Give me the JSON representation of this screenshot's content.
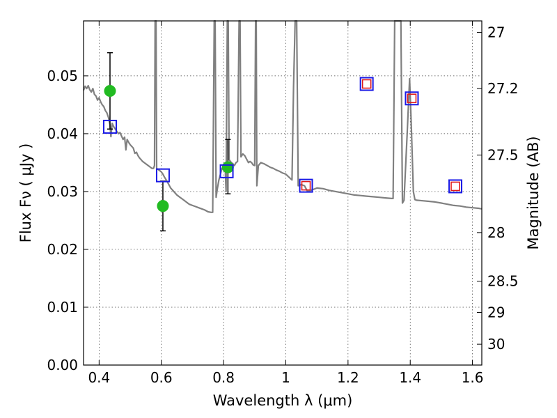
{
  "chart_data": {
    "type": "scatter",
    "xlabel": "Wavelength  λ (μm)",
    "ylabel": "Flux  Fν  ( μJy )",
    "ylabel_right": "Magnitude (AB)",
    "xlim": [
      0.35,
      1.63
    ],
    "ylim": [
      0.0,
      0.0595
    ],
    "xticks": [
      0.4,
      0.6,
      0.8,
      1.0,
      1.2,
      1.4,
      1.6
    ],
    "xtick_labels": [
      "0.4",
      "0.6",
      "0.8",
      "1",
      "1.2",
      "1.4",
      "1.6"
    ],
    "yticks": [
      0.0,
      0.01,
      0.02,
      0.03,
      0.04,
      0.05
    ],
    "ytick_labels": [
      "0.00",
      "0.01",
      "0.02",
      "0.03",
      "0.04",
      "0.05"
    ],
    "right_ticks": [
      {
        "label": "27",
        "flux": 0.0575
      },
      {
        "label": "27.2",
        "flux": 0.0478
      },
      {
        "label": "27.5",
        "flux": 0.0363
      },
      {
        "label": "28",
        "flux": 0.0229
      },
      {
        "label": "28.5",
        "flux": 0.0145
      },
      {
        "label": "29",
        "flux": 0.0091
      },
      {
        "label": "30",
        "flux": 0.0036
      }
    ],
    "grid": true,
    "colors": {
      "model": "#808080",
      "observed": "#22bb22",
      "synthetic_box": "#1a1ae6",
      "upper_limit_box": "#e01a1a",
      "errorbar": "#000000"
    },
    "series": [
      {
        "name": "model SED",
        "kind": "line",
        "points": [
          [
            0.35,
            0.0475
          ],
          [
            0.355,
            0.0482
          ],
          [
            0.36,
            0.0478
          ],
          [
            0.365,
            0.0483
          ],
          [
            0.37,
            0.0476
          ],
          [
            0.375,
            0.0472
          ],
          [
            0.38,
            0.0478
          ],
          [
            0.385,
            0.0468
          ],
          [
            0.39,
            0.0465
          ],
          [
            0.395,
            0.0458
          ],
          [
            0.4,
            0.0462
          ],
          [
            0.405,
            0.0455
          ],
          [
            0.41,
            0.045
          ],
          [
            0.415,
            0.0447
          ],
          [
            0.42,
            0.044
          ],
          [
            0.425,
            0.0436
          ],
          [
            0.43,
            0.0428
          ],
          [
            0.435,
            0.0415
          ],
          [
            0.438,
            0.0395
          ],
          [
            0.442,
            0.0418
          ],
          [
            0.447,
            0.0412
          ],
          [
            0.452,
            0.0408
          ],
          [
            0.457,
            0.0404
          ],
          [
            0.462,
            0.04
          ],
          [
            0.467,
            0.0402
          ],
          [
            0.472,
            0.0396
          ],
          [
            0.477,
            0.039
          ],
          [
            0.482,
            0.0394
          ],
          [
            0.486,
            0.0372
          ],
          [
            0.49,
            0.039
          ],
          [
            0.495,
            0.0385
          ],
          [
            0.5,
            0.0381
          ],
          [
            0.505,
            0.0378
          ],
          [
            0.51,
            0.0375
          ],
          [
            0.515,
            0.0366
          ],
          [
            0.52,
            0.0368
          ],
          [
            0.525,
            0.0362
          ],
          [
            0.53,
            0.0358
          ],
          [
            0.535,
            0.0355
          ],
          [
            0.54,
            0.0352
          ],
          [
            0.545,
            0.035
          ],
          [
            0.55,
            0.0348
          ],
          [
            0.555,
            0.0346
          ],
          [
            0.56,
            0.0344
          ],
          [
            0.565,
            0.0342
          ],
          [
            0.57,
            0.034
          ],
          [
            0.575,
            0.034
          ],
          [
            0.578,
            0.0345
          ],
          [
            0.58,
            0.06
          ],
          [
            0.583,
            0.06
          ],
          [
            0.585,
            0.034
          ],
          [
            0.59,
            0.0338
          ],
          [
            0.595,
            0.0336
          ],
          [
            0.6,
            0.0334
          ],
          [
            0.605,
            0.033
          ],
          [
            0.61,
            0.0325
          ],
          [
            0.62,
            0.0316
          ],
          [
            0.63,
            0.0306
          ],
          [
            0.64,
            0.03
          ],
          [
            0.65,
            0.0294
          ],
          [
            0.66,
            0.029
          ],
          [
            0.67,
            0.0286
          ],
          [
            0.68,
            0.0282
          ],
          [
            0.69,
            0.0278
          ],
          [
            0.7,
            0.0276
          ],
          [
            0.71,
            0.0274
          ],
          [
            0.72,
            0.0272
          ],
          [
            0.73,
            0.027
          ],
          [
            0.74,
            0.0268
          ],
          [
            0.75,
            0.0265
          ],
          [
            0.76,
            0.0264
          ],
          [
            0.765,
            0.0264
          ],
          [
            0.77,
            0.06
          ],
          [
            0.773,
            0.06
          ],
          [
            0.776,
            0.029
          ],
          [
            0.78,
            0.0305
          ],
          [
            0.785,
            0.032
          ],
          [
            0.79,
            0.033
          ],
          [
            0.795,
            0.034
          ],
          [
            0.8,
            0.0342
          ],
          [
            0.805,
            0.0345
          ],
          [
            0.808,
            0.03
          ],
          [
            0.812,
            0.06
          ],
          [
            0.815,
            0.06
          ],
          [
            0.818,
            0.0355
          ],
          [
            0.825,
            0.035
          ],
          [
            0.83,
            0.0348
          ],
          [
            0.835,
            0.0345
          ],
          [
            0.84,
            0.035
          ],
          [
            0.845,
            0.0352
          ],
          [
            0.85,
            0.06
          ],
          [
            0.853,
            0.06
          ],
          [
            0.856,
            0.036
          ],
          [
            0.862,
            0.0365
          ],
          [
            0.868,
            0.0362
          ],
          [
            0.875,
            0.0355
          ],
          [
            0.88,
            0.035
          ],
          [
            0.885,
            0.0352
          ],
          [
            0.89,
            0.035
          ],
          [
            0.895,
            0.0346
          ],
          [
            0.9,
            0.0345
          ],
          [
            0.903,
            0.06
          ],
          [
            0.905,
            0.06
          ],
          [
            0.907,
            0.031
          ],
          [
            0.912,
            0.0345
          ],
          [
            0.92,
            0.035
          ],
          [
            0.93,
            0.0348
          ],
          [
            0.94,
            0.0345
          ],
          [
            0.95,
            0.0342
          ],
          [
            0.96,
            0.034
          ],
          [
            0.97,
            0.0337
          ],
          [
            0.98,
            0.0335
          ],
          [
            0.99,
            0.0332
          ],
          [
            1.0,
            0.033
          ],
          [
            1.01,
            0.0325
          ],
          [
            1.02,
            0.032
          ],
          [
            1.025,
            0.048
          ],
          [
            1.03,
            0.06
          ],
          [
            1.035,
            0.06
          ],
          [
            1.04,
            0.031
          ],
          [
            1.05,
            0.0312
          ],
          [
            1.06,
            0.031
          ],
          [
            1.07,
            0.03
          ],
          [
            1.08,
            0.0302
          ],
          [
            1.09,
            0.0304
          ],
          [
            1.1,
            0.0306
          ],
          [
            1.12,
            0.0305
          ],
          [
            1.14,
            0.0302
          ],
          [
            1.16,
            0.03
          ],
          [
            1.18,
            0.0298
          ],
          [
            1.2,
            0.0296
          ],
          [
            1.22,
            0.0294
          ],
          [
            1.24,
            0.0293
          ],
          [
            1.26,
            0.0292
          ],
          [
            1.28,
            0.0291
          ],
          [
            1.3,
            0.029
          ],
          [
            1.32,
            0.0289
          ],
          [
            1.34,
            0.0288
          ],
          [
            1.345,
            0.0288
          ],
          [
            1.35,
            0.06
          ],
          [
            1.355,
            0.06
          ],
          [
            1.36,
            0.06
          ],
          [
            1.37,
            0.06
          ],
          [
            1.375,
            0.028
          ],
          [
            1.38,
            0.0285
          ],
          [
            1.39,
            0.04
          ],
          [
            1.398,
            0.0495
          ],
          [
            1.403,
            0.042
          ],
          [
            1.41,
            0.03
          ],
          [
            1.415,
            0.0286
          ],
          [
            1.42,
            0.0285
          ],
          [
            1.44,
            0.0284
          ],
          [
            1.46,
            0.0283
          ],
          [
            1.48,
            0.0282
          ],
          [
            1.5,
            0.028
          ],
          [
            1.52,
            0.0278
          ],
          [
            1.54,
            0.0276
          ],
          [
            1.56,
            0.0275
          ],
          [
            1.58,
            0.0273
          ],
          [
            1.6,
            0.0272
          ],
          [
            1.62,
            0.0271
          ],
          [
            1.63,
            0.027
          ]
        ]
      },
      {
        "name": "observed photometry",
        "kind": "points_with_errorbars",
        "points": [
          {
            "x": 0.435,
            "y": 0.0474,
            "yerr": [
              0.0408,
              0.054
            ]
          },
          {
            "x": 0.605,
            "y": 0.0275,
            "yerr": [
              0.0232,
              0.0318
            ]
          },
          {
            "x": 0.814,
            "y": 0.0342,
            "yerr": [
              0.0296,
              0.039
            ]
          }
        ]
      },
      {
        "name": "synthetic photometry",
        "kind": "open_squares",
        "points": [
          {
            "x": 0.435,
            "y": 0.0412
          },
          {
            "x": 0.605,
            "y": 0.0328
          },
          {
            "x": 0.81,
            "y": 0.0335
          },
          {
            "x": 1.065,
            "y": 0.031
          },
          {
            "x": 1.26,
            "y": 0.0486
          },
          {
            "x": 1.405,
            "y": 0.0461
          },
          {
            "x": 1.545,
            "y": 0.0309
          }
        ]
      },
      {
        "name": "predicted (no data)",
        "kind": "inner_squares",
        "points": [
          {
            "x": 1.065,
            "y": 0.031
          },
          {
            "x": 1.26,
            "y": 0.0486
          },
          {
            "x": 1.405,
            "y": 0.0461
          },
          {
            "x": 1.545,
            "y": 0.0309
          }
        ]
      }
    ]
  }
}
